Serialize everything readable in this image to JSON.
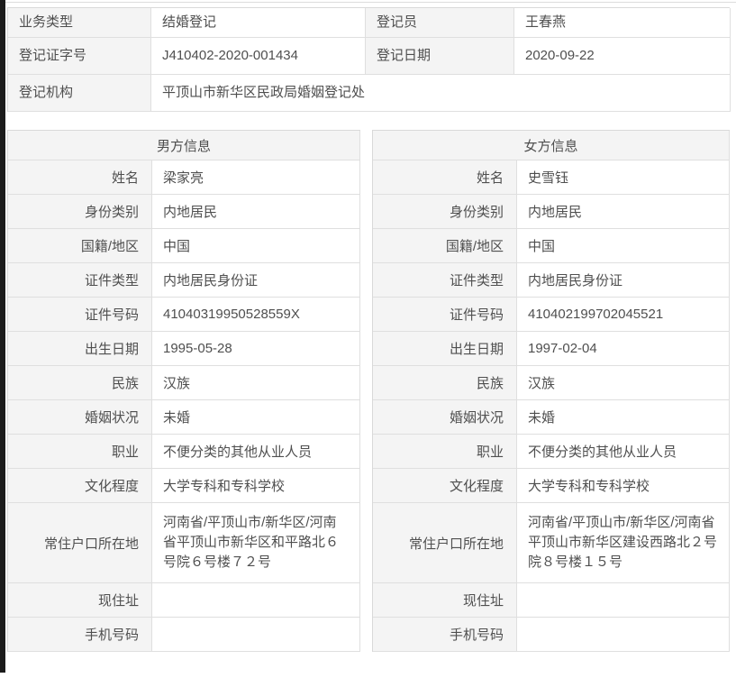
{
  "record": {
    "summary": {
      "rows": [
        {
          "label1": "业务类型",
          "value1": "结婚登记",
          "label2": "登记员",
          "value2": "王春燕"
        },
        {
          "label1": "登记证字号",
          "value1": "J410402-2020-001434",
          "label2": "登记日期",
          "value2": "2020-09-22"
        },
        {
          "label1": "登记机构",
          "value1": "平顶山市新华区民政局婚姻登记处"
        }
      ]
    },
    "male": {
      "title": "男方信息",
      "fields": [
        {
          "label": "姓名",
          "value": "梁家亮"
        },
        {
          "label": "身份类别",
          "value": "内地居民"
        },
        {
          "label": "国籍/地区",
          "value": "中国"
        },
        {
          "label": "证件类型",
          "value": "内地居民身份证"
        },
        {
          "label": "证件号码",
          "value": "41040319950528559X"
        },
        {
          "label": "出生日期",
          "value": "1995-05-28"
        },
        {
          "label": "民族",
          "value": "汉族"
        },
        {
          "label": "婚姻状况",
          "value": "未婚"
        },
        {
          "label": "职业",
          "value": "不便分类的其他从业人员"
        },
        {
          "label": "文化程度",
          "value": "大学专科和专科学校"
        },
        {
          "label": "常住户口所在地",
          "value": "河南省/平顶山市/新华区/河南省平顶山市新华区和平路北６号院６号楼７２号"
        },
        {
          "label": "现住址",
          "value": ""
        },
        {
          "label": "手机号码",
          "value": ""
        }
      ]
    },
    "female": {
      "title": "女方信息",
      "fields": [
        {
          "label": "姓名",
          "value": "史雪钰"
        },
        {
          "label": "身份类别",
          "value": "内地居民"
        },
        {
          "label": "国籍/地区",
          "value": "中国"
        },
        {
          "label": "证件类型",
          "value": "内地居民身份证"
        },
        {
          "label": "证件号码",
          "value": "410402199702045521"
        },
        {
          "label": "出生日期",
          "value": "1997-02-04"
        },
        {
          "label": "民族",
          "value": "汉族"
        },
        {
          "label": "婚姻状况",
          "value": "未婚"
        },
        {
          "label": "职业",
          "value": "不便分类的其他从业人员"
        },
        {
          "label": "文化程度",
          "value": "大学专科和专科学校"
        },
        {
          "label": "常住户口所在地",
          "value": "河南省/平顶山市/新华区/河南省平顶山市新华区建设西路北２号院８号楼１５号"
        },
        {
          "label": "现住址",
          "value": ""
        },
        {
          "label": "手机号码",
          "value": ""
        }
      ]
    },
    "colors": {
      "label_bg": "#f4f4f4",
      "border": "#dfdfdf",
      "text": "#4f4f4f",
      "left_strip": "#1b1b1b"
    }
  }
}
